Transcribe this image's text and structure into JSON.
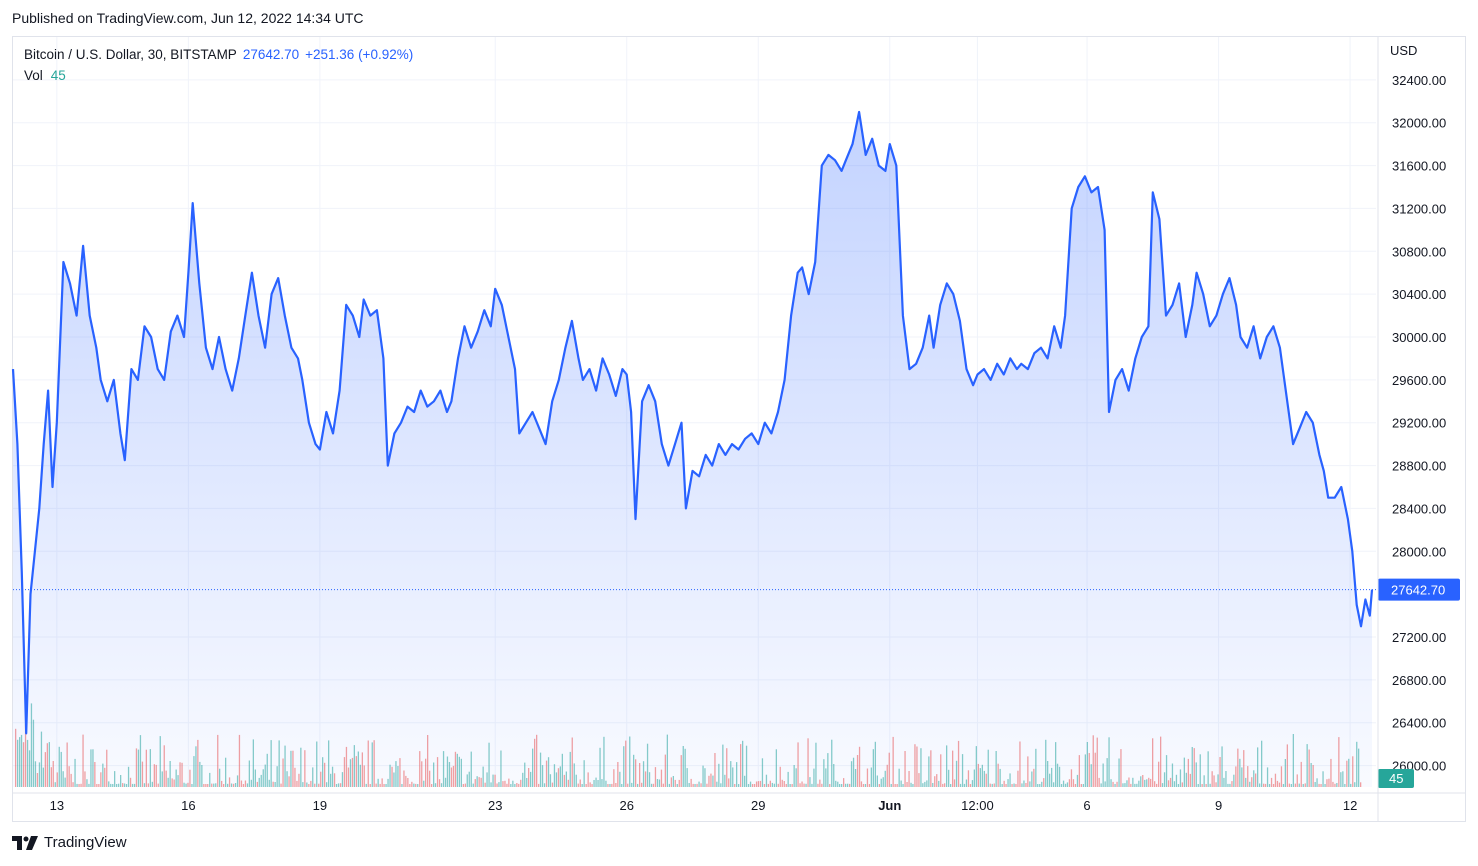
{
  "header": {
    "published": "Published on TradingView.com, Jun 12, 2022 14:34 UTC"
  },
  "legend": {
    "symbol": "Bitcoin / U.S. Dollar, 30, BITSTAMP",
    "price": "27642.70",
    "change": "+251.36 (+0.92%)",
    "vol_label": "Vol",
    "vol_value": "45"
  },
  "footer": {
    "brand": "TradingView",
    "logo_icon": "tradingview-logo-icon"
  },
  "colors": {
    "line": "#2962ff",
    "fill": "#2962ff",
    "grid": "#f0f3fa",
    "vol_up": "#26a69a",
    "vol_down": "#ef5350",
    "last_price_label": "#2962ff",
    "vol_label_bg": "#26a69a"
  },
  "chart_data": {
    "type": "area",
    "currency": "USD",
    "ylim": [
      25800,
      32800
    ],
    "y_ticks": [
      "32400.00",
      "32000.00",
      "31600.00",
      "31200.00",
      "30800.00",
      "30400.00",
      "30000.00",
      "29600.00",
      "29200.00",
      "28800.00",
      "28400.00",
      "28000.00",
      "27200.00",
      "26800.00",
      "26400.00",
      "26000.00"
    ],
    "x_ticks": [
      "13",
      "16",
      "19",
      "23",
      "26",
      "29",
      "Jun",
      "12:00",
      "6",
      "9",
      "12"
    ],
    "x_tick_index": [
      1.0,
      4.0,
      7.0,
      11.0,
      14.0,
      17.0,
      20.0,
      22.0,
      24.5,
      27.5,
      30.5
    ],
    "x_range": [
      0,
      31.0
    ],
    "last_price": 27642.7,
    "last_price_label": "27642.70",
    "volume_label": "45",
    "grid": true,
    "series": [
      {
        "points": [
          [
            0.0,
            29700
          ],
          [
            0.1,
            29000
          ],
          [
            0.2,
            27800
          ],
          [
            0.3,
            26300
          ],
          [
            0.4,
            27600
          ],
          [
            0.5,
            28000
          ],
          [
            0.6,
            28400
          ],
          [
            0.7,
            29000
          ],
          [
            0.8,
            29500
          ],
          [
            0.9,
            28600
          ],
          [
            1.0,
            29200
          ],
          [
            1.15,
            30700
          ],
          [
            1.3,
            30500
          ],
          [
            1.45,
            30200
          ],
          [
            1.6,
            30850
          ],
          [
            1.75,
            30200
          ],
          [
            1.9,
            29900
          ],
          [
            2.0,
            29600
          ],
          [
            2.15,
            29400
          ],
          [
            2.3,
            29600
          ],
          [
            2.45,
            29100
          ],
          [
            2.55,
            28850
          ],
          [
            2.7,
            29700
          ],
          [
            2.85,
            29600
          ],
          [
            3.0,
            30100
          ],
          [
            3.15,
            30000
          ],
          [
            3.3,
            29700
          ],
          [
            3.45,
            29600
          ],
          [
            3.6,
            30050
          ],
          [
            3.75,
            30200
          ],
          [
            3.9,
            30000
          ],
          [
            4.0,
            30600
          ],
          [
            4.1,
            31250
          ],
          [
            4.25,
            30500
          ],
          [
            4.4,
            29900
          ],
          [
            4.55,
            29700
          ],
          [
            4.7,
            30000
          ],
          [
            4.85,
            29700
          ],
          [
            5.0,
            29500
          ],
          [
            5.15,
            29800
          ],
          [
            5.3,
            30200
          ],
          [
            5.45,
            30600
          ],
          [
            5.6,
            30200
          ],
          [
            5.75,
            29900
          ],
          [
            5.9,
            30400
          ],
          [
            6.05,
            30550
          ],
          [
            6.2,
            30200
          ],
          [
            6.35,
            29900
          ],
          [
            6.5,
            29800
          ],
          [
            6.6,
            29600
          ],
          [
            6.75,
            29200
          ],
          [
            6.9,
            29000
          ],
          [
            7.0,
            28950
          ],
          [
            7.15,
            29300
          ],
          [
            7.3,
            29100
          ],
          [
            7.45,
            29500
          ],
          [
            7.6,
            30300
          ],
          [
            7.75,
            30200
          ],
          [
            7.9,
            30000
          ],
          [
            8.0,
            30350
          ],
          [
            8.15,
            30200
          ],
          [
            8.3,
            30250
          ],
          [
            8.45,
            29800
          ],
          [
            8.55,
            28800
          ],
          [
            8.7,
            29100
          ],
          [
            8.85,
            29200
          ],
          [
            9.0,
            29350
          ],
          [
            9.15,
            29300
          ],
          [
            9.3,
            29500
          ],
          [
            9.45,
            29350
          ],
          [
            9.6,
            29400
          ],
          [
            9.75,
            29500
          ],
          [
            9.9,
            29300
          ],
          [
            10.0,
            29400
          ],
          [
            10.15,
            29800
          ],
          [
            10.3,
            30100
          ],
          [
            10.45,
            29900
          ],
          [
            10.6,
            30050
          ],
          [
            10.75,
            30250
          ],
          [
            10.9,
            30100
          ],
          [
            11.0,
            30450
          ],
          [
            11.15,
            30300
          ],
          [
            11.3,
            30000
          ],
          [
            11.45,
            29700
          ],
          [
            11.55,
            29100
          ],
          [
            11.7,
            29200
          ],
          [
            11.85,
            29300
          ],
          [
            12.0,
            29150
          ],
          [
            12.15,
            29000
          ],
          [
            12.3,
            29400
          ],
          [
            12.45,
            29600
          ],
          [
            12.6,
            29900
          ],
          [
            12.75,
            30150
          ],
          [
            12.9,
            29800
          ],
          [
            13.0,
            29600
          ],
          [
            13.15,
            29700
          ],
          [
            13.3,
            29500
          ],
          [
            13.45,
            29800
          ],
          [
            13.6,
            29650
          ],
          [
            13.75,
            29450
          ],
          [
            13.9,
            29700
          ],
          [
            14.0,
            29650
          ],
          [
            14.1,
            29300
          ],
          [
            14.2,
            28300
          ],
          [
            14.35,
            29400
          ],
          [
            14.5,
            29550
          ],
          [
            14.65,
            29400
          ],
          [
            14.8,
            29000
          ],
          [
            14.95,
            28800
          ],
          [
            15.1,
            29000
          ],
          [
            15.25,
            29200
          ],
          [
            15.35,
            28400
          ],
          [
            15.5,
            28750
          ],
          [
            15.65,
            28700
          ],
          [
            15.8,
            28900
          ],
          [
            15.95,
            28800
          ],
          [
            16.1,
            29000
          ],
          [
            16.25,
            28900
          ],
          [
            16.4,
            29000
          ],
          [
            16.55,
            28950
          ],
          [
            16.7,
            29050
          ],
          [
            16.85,
            29100
          ],
          [
            17.0,
            29000
          ],
          [
            17.15,
            29200
          ],
          [
            17.3,
            29100
          ],
          [
            17.45,
            29300
          ],
          [
            17.6,
            29600
          ],
          [
            17.75,
            30200
          ],
          [
            17.9,
            30600
          ],
          [
            18.0,
            30650
          ],
          [
            18.15,
            30400
          ],
          [
            18.3,
            30700
          ],
          [
            18.45,
            31600
          ],
          [
            18.6,
            31700
          ],
          [
            18.75,
            31650
          ],
          [
            18.9,
            31550
          ],
          [
            19.0,
            31650
          ],
          [
            19.15,
            31800
          ],
          [
            19.3,
            32100
          ],
          [
            19.45,
            31700
          ],
          [
            19.6,
            31850
          ],
          [
            19.75,
            31600
          ],
          [
            19.9,
            31550
          ],
          [
            20.0,
            31800
          ],
          [
            20.15,
            31600
          ],
          [
            20.3,
            30200
          ],
          [
            20.45,
            29700
          ],
          [
            20.6,
            29750
          ],
          [
            20.75,
            29900
          ],
          [
            20.9,
            30200
          ],
          [
            21.0,
            29900
          ],
          [
            21.15,
            30300
          ],
          [
            21.3,
            30500
          ],
          [
            21.45,
            30400
          ],
          [
            21.6,
            30150
          ],
          [
            21.75,
            29700
          ],
          [
            21.9,
            29550
          ],
          [
            22.0,
            29650
          ],
          [
            22.15,
            29700
          ],
          [
            22.3,
            29600
          ],
          [
            22.45,
            29750
          ],
          [
            22.6,
            29650
          ],
          [
            22.75,
            29800
          ],
          [
            22.9,
            29700
          ],
          [
            23.0,
            29750
          ],
          [
            23.15,
            29700
          ],
          [
            23.3,
            29850
          ],
          [
            23.45,
            29900
          ],
          [
            23.6,
            29800
          ],
          [
            23.75,
            30100
          ],
          [
            23.9,
            29900
          ],
          [
            24.0,
            30200
          ],
          [
            24.15,
            31200
          ],
          [
            24.3,
            31400
          ],
          [
            24.45,
            31500
          ],
          [
            24.6,
            31350
          ],
          [
            24.75,
            31400
          ],
          [
            24.9,
            31000
          ],
          [
            25.0,
            29300
          ],
          [
            25.15,
            29600
          ],
          [
            25.3,
            29700
          ],
          [
            25.45,
            29500
          ],
          [
            25.6,
            29800
          ],
          [
            25.75,
            30000
          ],
          [
            25.9,
            30100
          ],
          [
            26.0,
            31350
          ],
          [
            26.15,
            31100
          ],
          [
            26.3,
            30200
          ],
          [
            26.45,
            30300
          ],
          [
            26.6,
            30500
          ],
          [
            26.75,
            30000
          ],
          [
            26.9,
            30300
          ],
          [
            27.0,
            30600
          ],
          [
            27.15,
            30400
          ],
          [
            27.3,
            30100
          ],
          [
            27.45,
            30200
          ],
          [
            27.6,
            30400
          ],
          [
            27.75,
            30550
          ],
          [
            27.9,
            30300
          ],
          [
            28.0,
            30000
          ],
          [
            28.15,
            29900
          ],
          [
            28.3,
            30100
          ],
          [
            28.45,
            29800
          ],
          [
            28.6,
            30000
          ],
          [
            28.75,
            30100
          ],
          [
            28.9,
            29900
          ],
          [
            29.0,
            29600
          ],
          [
            29.1,
            29300
          ],
          [
            29.2,
            29000
          ],
          [
            29.35,
            29150
          ],
          [
            29.5,
            29300
          ],
          [
            29.65,
            29200
          ],
          [
            29.8,
            28900
          ],
          [
            29.9,
            28750
          ],
          [
            30.0,
            28500
          ],
          [
            30.15,
            28500
          ],
          [
            30.3,
            28600
          ],
          [
            30.45,
            28300
          ],
          [
            30.55,
            28000
          ],
          [
            30.65,
            27500
          ],
          [
            30.75,
            27300
          ],
          [
            30.85,
            27550
          ],
          [
            30.95,
            27400
          ],
          [
            31.0,
            27642.7
          ]
        ]
      }
    ],
    "volume_seed": 7
  }
}
